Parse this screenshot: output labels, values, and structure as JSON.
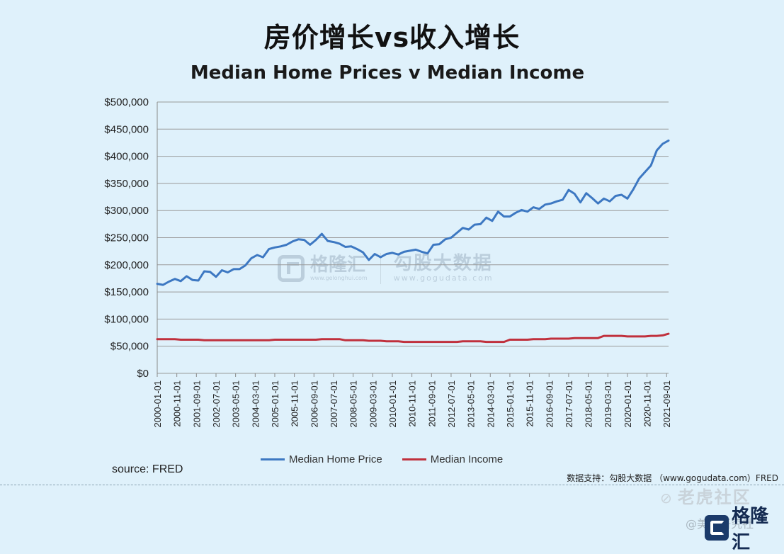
{
  "page_title": "房价增长vs收入增长",
  "source": "source: FRED",
  "data_support": "数据支持：勾股大数据 （www.gogudata.com）FRED",
  "watermarks": {
    "brand_name": "格隆汇",
    "brand_url": "www.gelonghui.com",
    "gogu_name": "勾股大数据",
    "gogu_url": "www.gogudata.com",
    "corner_text": "老虎社区",
    "corner_user": "@美股研究社",
    "corner_brand": "格隆汇"
  },
  "colors": {
    "background": "#dff1fb",
    "home_price": "#3d78c2",
    "income": "#c0303c",
    "grid": "#9a9a9a"
  },
  "chart_data": {
    "type": "line",
    "title": "Median Home Prices v Median Income",
    "xlabel": "",
    "ylabel": "",
    "ylim": [
      0,
      500000
    ],
    "yticks": [
      0,
      50000,
      100000,
      150000,
      200000,
      250000,
      300000,
      350000,
      400000,
      450000,
      500000
    ],
    "ytick_labels": [
      "$0",
      "$50,000",
      "$100,000",
      "$150,000",
      "$200,000",
      "$250,000",
      "$300,000",
      "$350,000",
      "$400,000",
      "$450,000",
      "$500,000"
    ],
    "xtick_labels": [
      "2000-01-01",
      "2000-11-01",
      "2001-09-01",
      "2002-07-01",
      "2003-05-01",
      "2004-03-01",
      "2005-01-01",
      "2005-11-01",
      "2006-09-01",
      "2007-07-01",
      "2008-05-01",
      "2009-03-01",
      "2010-01-01",
      "2010-11-01",
      "2011-09-01",
      "2012-07-01",
      "2013-05-01",
      "2014-03-01",
      "2015-01-01",
      "2015-11-01",
      "2016-09-01",
      "2017-07-01",
      "2018-05-01",
      "2019-03-01",
      "2020-01-01",
      "2020-11-01",
      "2021-09-01"
    ],
    "grid": true,
    "legend_position": "bottom",
    "x": [
      "2000-01",
      "2000-04",
      "2000-07",
      "2000-10",
      "2001-01",
      "2001-04",
      "2001-07",
      "2001-10",
      "2002-01",
      "2002-04",
      "2002-07",
      "2002-10",
      "2003-01",
      "2003-04",
      "2003-07",
      "2003-10",
      "2004-01",
      "2004-04",
      "2004-07",
      "2004-10",
      "2005-01",
      "2005-04",
      "2005-07",
      "2005-10",
      "2006-01",
      "2006-04",
      "2006-07",
      "2006-10",
      "2007-01",
      "2007-04",
      "2007-07",
      "2007-10",
      "2008-01",
      "2008-04",
      "2008-07",
      "2008-10",
      "2009-01",
      "2009-04",
      "2009-07",
      "2009-10",
      "2010-01",
      "2010-04",
      "2010-07",
      "2010-10",
      "2011-01",
      "2011-04",
      "2011-07",
      "2011-10",
      "2012-01",
      "2012-04",
      "2012-07",
      "2012-10",
      "2013-01",
      "2013-04",
      "2013-07",
      "2013-10",
      "2014-01",
      "2014-04",
      "2014-07",
      "2014-10",
      "2015-01",
      "2015-04",
      "2015-07",
      "2015-10",
      "2016-01",
      "2016-04",
      "2016-07",
      "2016-10",
      "2017-01",
      "2017-04",
      "2017-07",
      "2017-10",
      "2018-01",
      "2018-04",
      "2018-07",
      "2018-10",
      "2019-01",
      "2019-04",
      "2019-07",
      "2019-10",
      "2020-01",
      "2020-04",
      "2020-07",
      "2020-10",
      "2021-01",
      "2021-04",
      "2021-07",
      "2021-10"
    ],
    "series": [
      {
        "name": "Median Home Price",
        "values": [
          165000,
          163000,
          169000,
          174000,
          170000,
          179000,
          172000,
          171000,
          188000,
          187000,
          178000,
          190000,
          186000,
          192000,
          192000,
          199000,
          212000,
          218000,
          214000,
          229000,
          232000,
          234000,
          237000,
          243000,
          247000,
          246000,
          237000,
          246000,
          257000,
          244000,
          242000,
          239000,
          233000,
          234000,
          229000,
          223000,
          209000,
          220000,
          214000,
          220000,
          222000,
          219000,
          224000,
          226000,
          228000,
          224000,
          221000,
          237000,
          238000,
          247000,
          250000,
          259000,
          268000,
          265000,
          274000,
          275000,
          287000,
          281000,
          298000,
          289000,
          289000,
          296000,
          301000,
          298000,
          306000,
          303000,
          311000,
          313000,
          317000,
          320000,
          338000,
          331000,
          315000,
          332000,
          323000,
          313000,
          322000,
          317000,
          327000,
          329000,
          322000,
          339000,
          359000,
          371000,
          383000,
          411000,
          423000,
          429000
        ]
      },
      {
        "name": "Median Income",
        "values": [
          63000,
          63000,
          63000,
          63000,
          62000,
          62000,
          62000,
          62000,
          61000,
          61000,
          61000,
          61000,
          61000,
          61000,
          61000,
          61000,
          61000,
          61000,
          61000,
          61000,
          62000,
          62000,
          62000,
          62000,
          62000,
          62000,
          62000,
          62000,
          63000,
          63000,
          63000,
          63000,
          61000,
          61000,
          61000,
          61000,
          60000,
          60000,
          60000,
          59000,
          59000,
          59000,
          58000,
          58000,
          58000,
          58000,
          58000,
          58000,
          58000,
          58000,
          58000,
          58000,
          59000,
          59000,
          59000,
          59000,
          58000,
          58000,
          58000,
          58000,
          62000,
          62000,
          62000,
          62000,
          63000,
          63000,
          63000,
          64000,
          64000,
          64000,
          64000,
          65000,
          65000,
          65000,
          65000,
          65000,
          69000,
          69000,
          69000,
          69000,
          68000,
          68000,
          68000,
          68000,
          69000,
          69000,
          70000,
          73000
        ]
      }
    ]
  }
}
